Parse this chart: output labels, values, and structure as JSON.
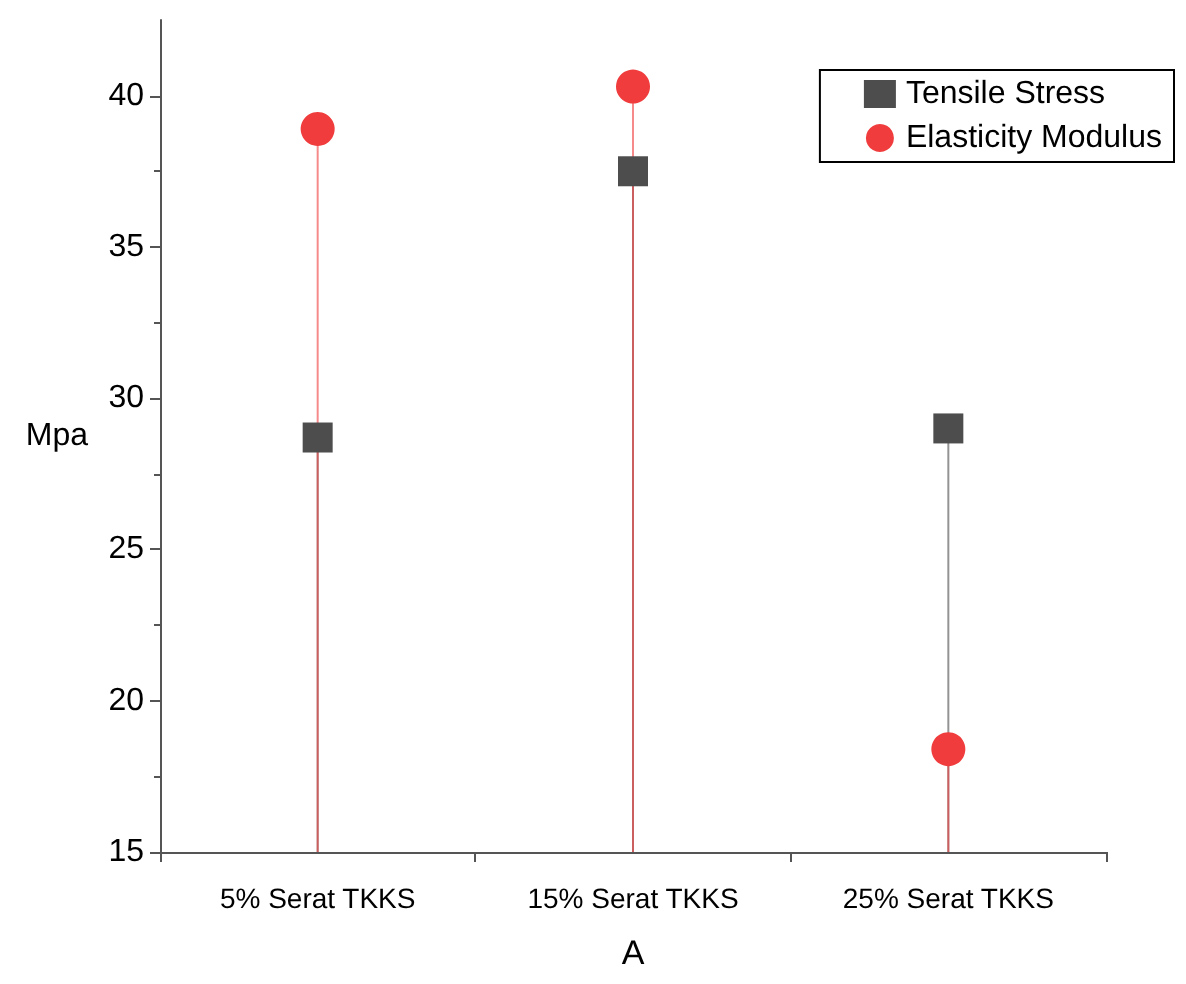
{
  "chart_data": {
    "type": "lollipop",
    "xlabel": "A",
    "ylabel": "Mpa",
    "categories": [
      "5% Serat TKKS",
      "15% Serat TKKS",
      "25% Serat TKKS"
    ],
    "series": [
      {
        "name": "Tensile Stress",
        "color": "#4d4d4d",
        "marker": "square",
        "values": [
          28.7,
          37.5,
          29.0
        ]
      },
      {
        "name": "Elasticity Modulus",
        "color": "#f03c3c",
        "marker": "circle",
        "values": [
          38.9,
          40.3,
          18.4
        ]
      }
    ],
    "ylim": [
      15,
      42.5
    ],
    "yticks": [
      15,
      20,
      25,
      30,
      35,
      40
    ],
    "grid": false,
    "legend": "top right"
  }
}
